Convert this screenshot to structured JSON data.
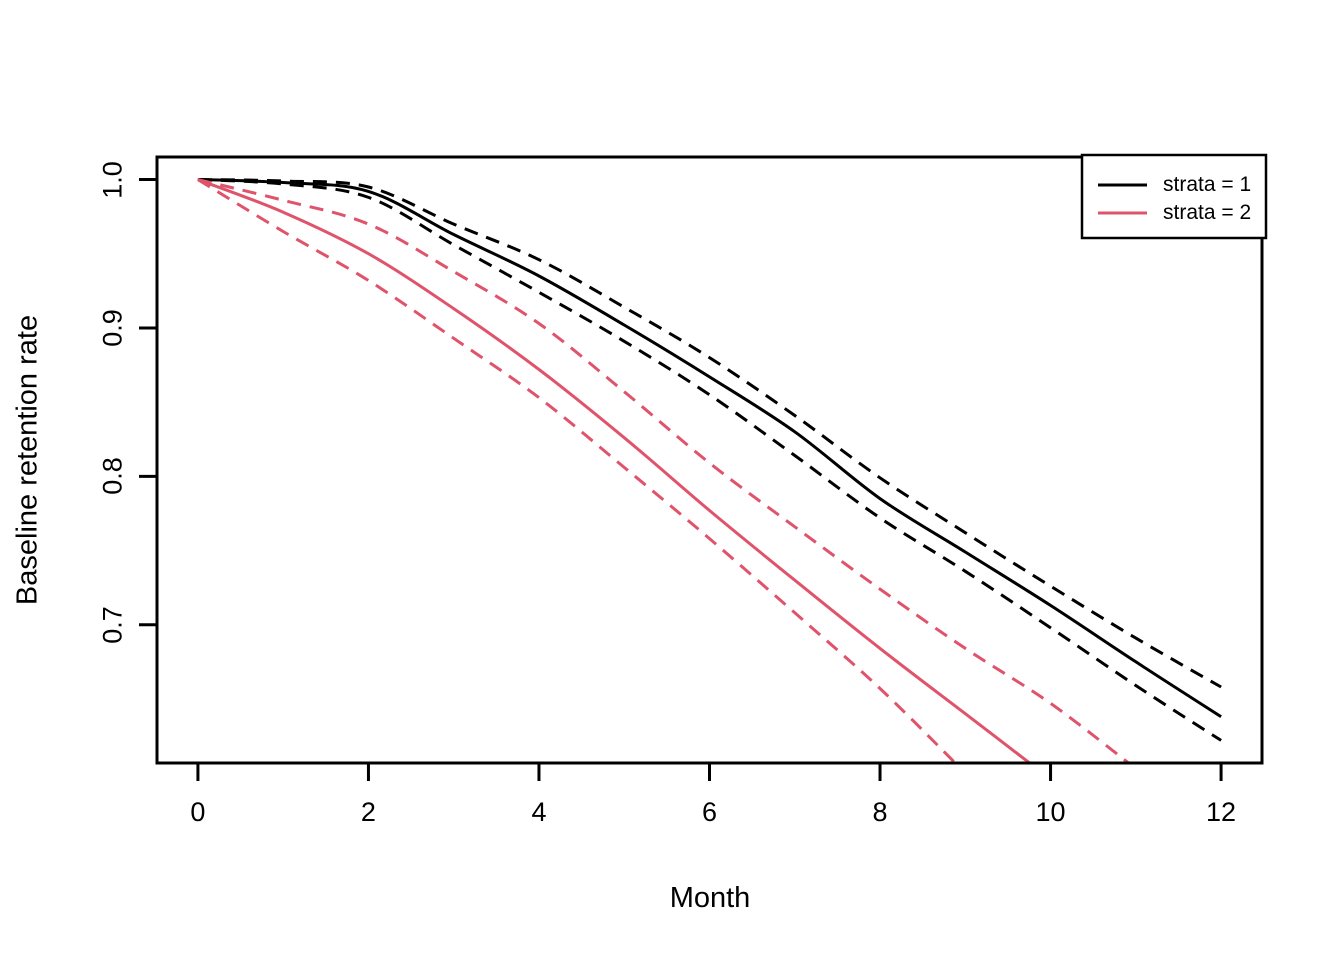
{
  "figure": {
    "background": "#ffffff",
    "title": ""
  },
  "chart_data": {
    "type": "line",
    "title": "",
    "xlabel": "Month",
    "ylabel": "Baseline retention rate",
    "x_ticks": [
      0,
      2,
      4,
      6,
      8,
      10,
      12
    ],
    "x_tick_labels": [
      "0",
      "2",
      "4",
      "6",
      "8",
      "10",
      "12"
    ],
    "y_ticks": [
      1.0,
      0.9,
      0.8,
      0.7
    ],
    "y_tick_labels": [
      "1.0",
      "0.9",
      "0.8",
      "0.7"
    ],
    "xlim": [
      -0.48,
      12.48
    ],
    "ylim": [
      0.6068,
      1.0152
    ],
    "grid": false,
    "colors": {
      "strata1": "#000000",
      "strata2": "#DF536B"
    },
    "series": [
      {
        "name": "strata = 1 estimate",
        "color": "#000000",
        "style": "solid",
        "x": [
          0,
          1,
          2,
          3,
          4,
          5,
          6,
          7,
          8,
          9,
          10,
          11,
          12
        ],
        "values": [
          1.0,
          0.998,
          0.992,
          0.963,
          0.935,
          0.902,
          0.867,
          0.83,
          0.785,
          0.749,
          0.713,
          0.675,
          0.638
        ]
      },
      {
        "name": "strata = 1 upper 95% CI",
        "color": "#000000",
        "style": "dashed",
        "x": [
          0,
          1,
          2,
          3,
          4,
          5,
          6,
          7,
          8,
          9,
          10,
          11,
          12
        ],
        "values": [
          1.0,
          0.999,
          0.995,
          0.97,
          0.946,
          0.914,
          0.88,
          0.841,
          0.799,
          0.762,
          0.726,
          0.691,
          0.658
        ]
      },
      {
        "name": "strata = 1 lower 95% CI",
        "color": "#000000",
        "style": "dashed",
        "x": [
          0,
          1,
          2,
          3,
          4,
          5,
          6,
          7,
          8,
          9,
          10,
          11,
          12
        ],
        "values": [
          1.0,
          0.997,
          0.988,
          0.956,
          0.924,
          0.891,
          0.855,
          0.814,
          0.772,
          0.736,
          0.698,
          0.659,
          0.622
        ]
      },
      {
        "name": "strata = 2 estimate",
        "color": "#DF536B",
        "style": "solid",
        "x": [
          0,
          1,
          2,
          3,
          4,
          5,
          6,
          7,
          8,
          9,
          10
        ],
        "values": [
          1.0,
          0.978,
          0.95,
          0.913,
          0.872,
          0.826,
          0.777,
          0.73,
          0.684,
          0.64,
          0.596
        ]
      },
      {
        "name": "strata = 2 upper 95% CI",
        "color": "#DF536B",
        "style": "dashed",
        "x": [
          0,
          1,
          2,
          3,
          4,
          5,
          6,
          7,
          8,
          9,
          10,
          11
        ],
        "values": [
          1.0,
          0.986,
          0.97,
          0.938,
          0.903,
          0.857,
          0.809,
          0.766,
          0.724,
          0.684,
          0.647,
          0.603
        ]
      },
      {
        "name": "strata = 2 lower 95% CI",
        "color": "#DF536B",
        "style": "dashed",
        "x": [
          0,
          1,
          2,
          3,
          4,
          5,
          6,
          7,
          8,
          9
        ],
        "values": [
          1.0,
          0.965,
          0.932,
          0.893,
          0.853,
          0.806,
          0.758,
          0.708,
          0.657,
          0.6
        ]
      }
    ],
    "legend": {
      "position": "topright",
      "entries": [
        {
          "label": "strata = 1",
          "color": "#000000",
          "style": "solid"
        },
        {
          "label": "strata = 2",
          "color": "#DF536B",
          "style": "solid"
        }
      ]
    }
  }
}
